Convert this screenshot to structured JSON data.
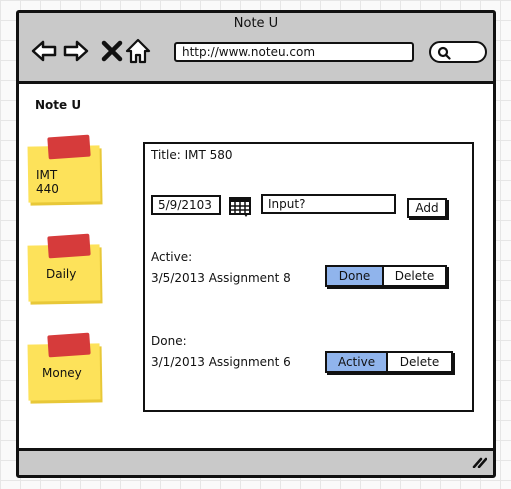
{
  "window": {
    "title": "Note U"
  },
  "browser": {
    "url": "http://www.noteu.com"
  },
  "app": {
    "name": "Note U"
  },
  "notes": [
    {
      "label": "IMT 440"
    },
    {
      "label": "Daily"
    },
    {
      "label": "Money"
    }
  ],
  "panel": {
    "title": "Title: IMT 580",
    "date_value": "5/9/2103",
    "input_placeholder": "Input?",
    "add_label": "Add",
    "active_heading": "Active:",
    "active_item": "3/5/2013 Assignment 8",
    "active_buttons": {
      "primary": "Done",
      "secondary": "Delete"
    },
    "done_heading": "Done:",
    "done_item": "3/1/2013 Assignment 6",
    "done_buttons": {
      "primary": "Active",
      "secondary": "Delete"
    }
  },
  "colors": {
    "titlebar": "#c9c9c9",
    "note": "#fde25a",
    "tape": "#d63b3b",
    "selected_button": "#90b4ec"
  }
}
